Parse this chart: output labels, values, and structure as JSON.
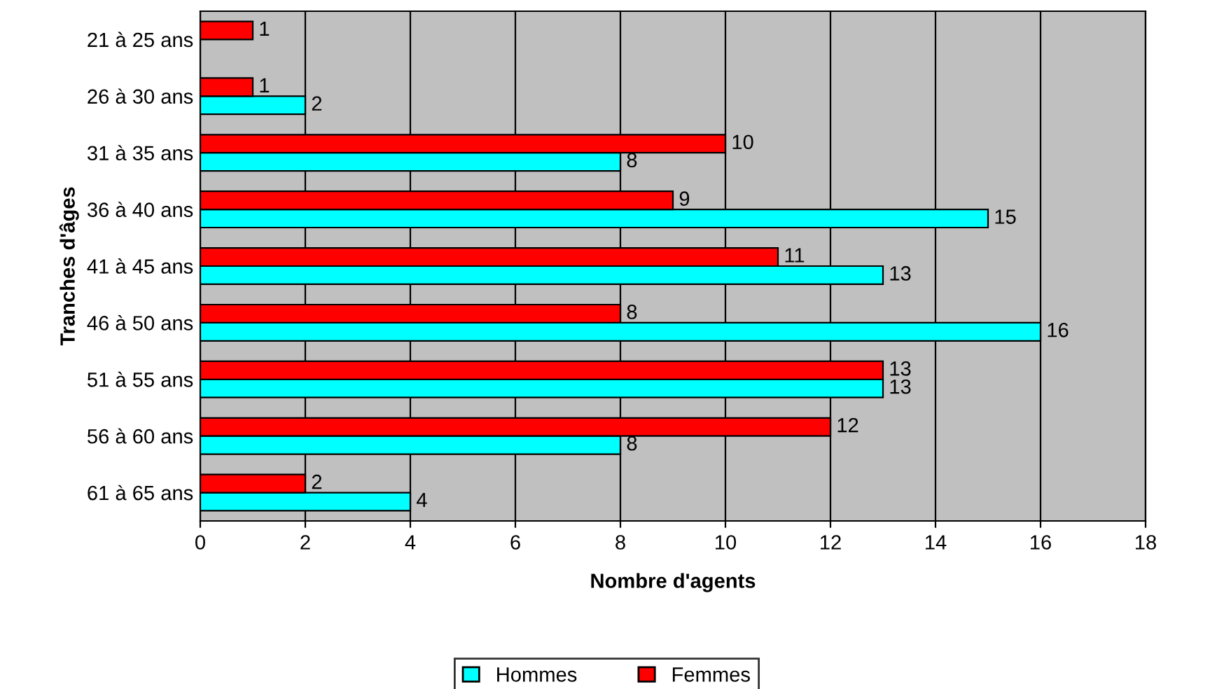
{
  "chart_data": {
    "type": "bar",
    "orientation": "horizontal",
    "xlabel": "Nombre d'agents",
    "ylabel": "Tranches d'âges",
    "categories": [
      "21 à 25 ans",
      "26 à 30 ans",
      "31 à 35 ans",
      "36 à 40 ans",
      "41 à 45 ans",
      "46 à 50 ans",
      "51 à 55 ans",
      "56 à 60 ans",
      "61 à 65 ans"
    ],
    "series": [
      {
        "name": "Hommes",
        "color": "#00ffff",
        "values": [
          null,
          2,
          8,
          15,
          13,
          16,
          13,
          8,
          4
        ]
      },
      {
        "name": "Femmes",
        "color": "#ff0000",
        "values": [
          1,
          1,
          10,
          9,
          11,
          8,
          13,
          12,
          2
        ]
      }
    ],
    "xlim": [
      0,
      18
    ],
    "xticks": [
      0,
      2,
      4,
      6,
      8,
      10,
      12,
      14,
      16,
      18
    ],
    "grid": "x",
    "legend": "bottom",
    "data_labels": true
  }
}
